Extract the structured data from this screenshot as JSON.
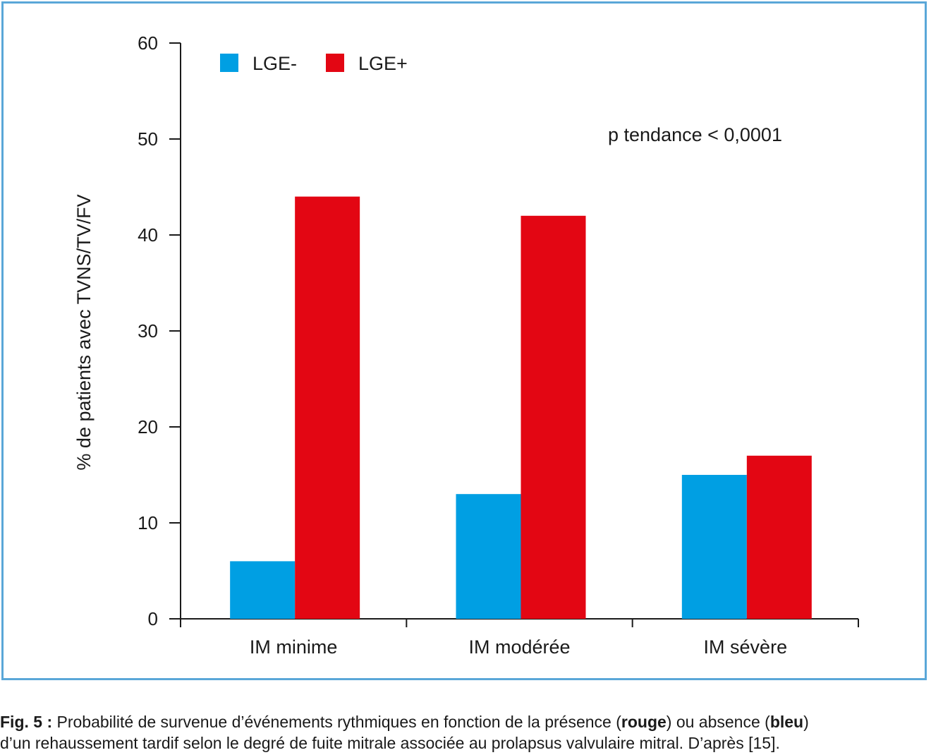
{
  "chart_data": {
    "type": "bar",
    "categories": [
      "IM minime",
      "IM modérée",
      "IM sévère"
    ],
    "series": [
      {
        "name": "LGE-",
        "color": "#009fe3",
        "values": [
          6,
          13,
          15
        ]
      },
      {
        "name": "LGE+",
        "color": "#e30613",
        "values": [
          44,
          42,
          17
        ]
      }
    ],
    "ylabel": "% de patients avec TVNS/TV/FV",
    "xlabel": "",
    "ylim": [
      0,
      60
    ],
    "yticks": [
      0,
      10,
      20,
      30,
      40,
      50,
      60
    ],
    "legend_position": "top-left",
    "grid": false,
    "annotation": "p tendance < 0,0001"
  },
  "caption": {
    "label": "Fig. 5 :",
    "text_1": " Probabilité de survenue d’événements rythmiques en fonction de la présence (",
    "bold_1": "rouge",
    "text_2": ") ou absence (",
    "bold_2": "bleu",
    "text_3": ")",
    "line_2": "d’un rehaussement tardif selon le degré de fuite mitrale associée au prolapsus valvulaire mitral. D’après [15]."
  }
}
